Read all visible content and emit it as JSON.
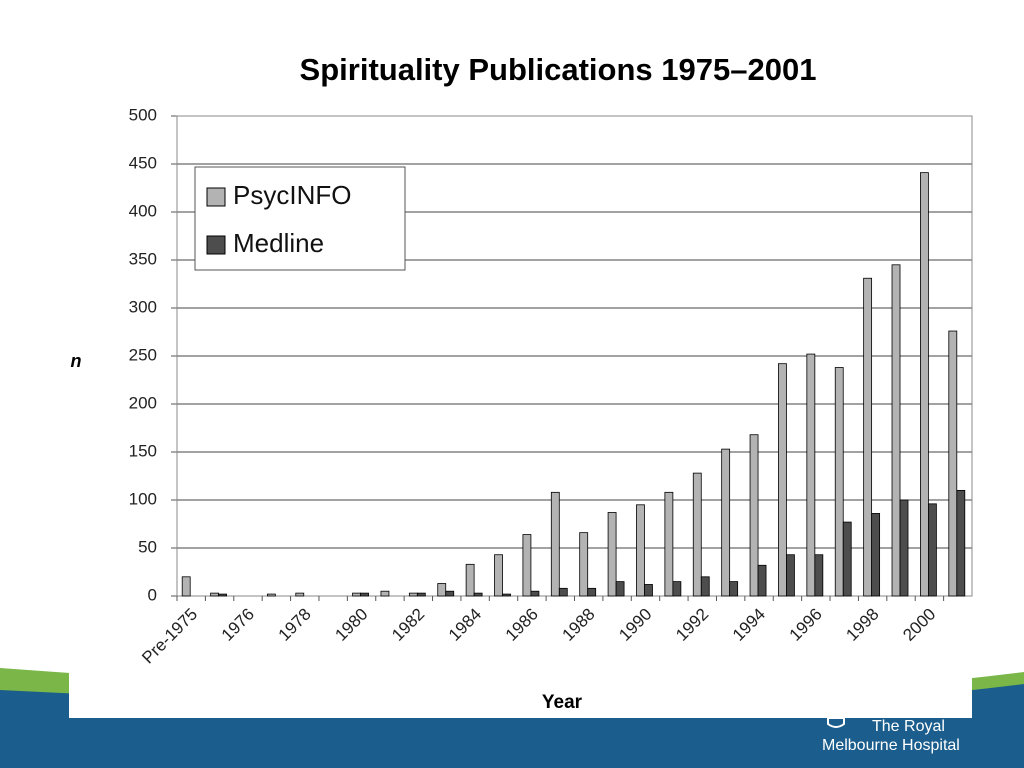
{
  "chart_data": {
    "type": "bar",
    "title": "Spirituality Publications 1975–2001",
    "xlabel": "Year",
    "ylabel": "n",
    "categories": [
      "Pre-1975",
      null,
      "1976",
      null,
      "1978",
      null,
      "1980",
      null,
      "1982",
      null,
      "1984",
      null,
      "1986",
      null,
      "1988",
      null,
      "1990",
      null,
      "1992",
      null,
      "1994",
      null,
      "1996",
      null,
      "1998",
      null,
      "2000",
      null
    ],
    "series": [
      {
        "name": "PsycINFO",
        "color": "#b3b3b3",
        "values": [
          20,
          3,
          0,
          2,
          3,
          0,
          3,
          5,
          3,
          13,
          33,
          43,
          64,
          108,
          66,
          87,
          95,
          108,
          128,
          153,
          168,
          242,
          252,
          238,
          331,
          345,
          441,
          276
        ]
      },
      {
        "name": "Medline",
        "color": "#4d4d4d",
        "values": [
          0,
          2,
          0,
          0,
          0,
          0,
          3,
          0,
          3,
          5,
          3,
          2,
          5,
          8,
          8,
          15,
          12,
          15,
          20,
          15,
          32,
          43,
          43,
          77,
          86,
          100,
          96,
          110
        ]
      }
    ],
    "ylim": [
      0,
      500
    ],
    "yticks": [
      0,
      50,
      100,
      150,
      200,
      250,
      300,
      350,
      400,
      450,
      500
    ],
    "grid": true,
    "legend": "upper-left"
  },
  "footer": {
    "lines": [
      "The Royal",
      "Melbourne Hospital"
    ]
  }
}
